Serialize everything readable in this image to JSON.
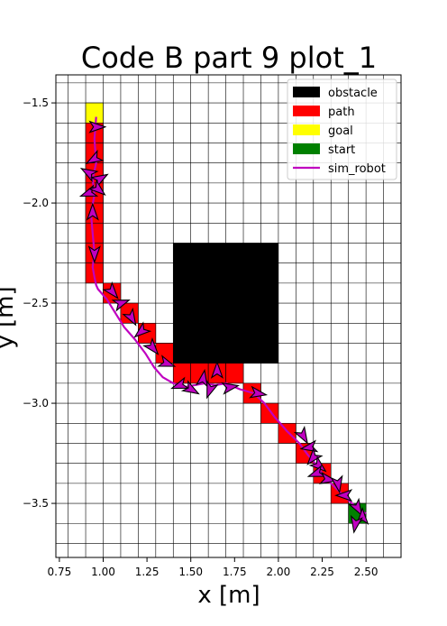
{
  "chart_data": {
    "type": "scatter",
    "title": "Code B part 9 plot_1",
    "xlabel": "x [m]",
    "ylabel": "y [m]",
    "xlim": [
      0.73,
      2.7
    ],
    "ylim": [
      -3.77,
      -1.36
    ],
    "grid": true,
    "grid_step": 0.1,
    "grid_origin_x": 0.8,
    "grid_origin_y": -1.4,
    "xticks": [
      0.75,
      1.0,
      1.25,
      1.5,
      1.75,
      2.0,
      2.25,
      2.5
    ],
    "xtick_labels": [
      "0.75",
      "1.00",
      "1.25",
      "1.50",
      "1.75",
      "2.00",
      "2.25",
      "2.50"
    ],
    "yticks": [
      -1.5,
      -2.0,
      -2.5,
      -3.0,
      -3.5
    ],
    "ytick_labels": [
      "−1.5",
      "−2.0",
      "−2.5",
      "−3.0",
      "−3.5"
    ],
    "legend_position": "top-right",
    "legend": [
      {
        "label": "obstacle",
        "color": "#000000",
        "kind": "patch"
      },
      {
        "label": "path",
        "color": "#ff0000",
        "kind": "patch"
      },
      {
        "label": "goal",
        "color": "#ffff00",
        "kind": "patch"
      },
      {
        "label": "start",
        "color": "#008000",
        "kind": "patch"
      },
      {
        "label": "sim_robot",
        "color": "#c000c0",
        "kind": "line"
      }
    ],
    "obstacle": {
      "x": [
        1.4,
        2.0
      ],
      "y": [
        -2.8,
        -2.2
      ]
    },
    "cell_size": 0.1,
    "goal_cells": [
      [
        0.9,
        -1.6
      ]
    ],
    "start_cells": [
      [
        2.4,
        -3.6
      ]
    ],
    "path_cells": [
      [
        0.9,
        -1.7
      ],
      [
        0.9,
        -1.8
      ],
      [
        0.9,
        -1.9
      ],
      [
        0.9,
        -2.0
      ],
      [
        0.9,
        -2.1
      ],
      [
        0.9,
        -2.2
      ],
      [
        0.9,
        -2.3
      ],
      [
        0.9,
        -2.4
      ],
      [
        1.0,
        -2.5
      ],
      [
        1.1,
        -2.6
      ],
      [
        1.2,
        -2.7
      ],
      [
        1.3,
        -2.8
      ],
      [
        1.4,
        -2.9
      ],
      [
        1.5,
        -2.9
      ],
      [
        1.6,
        -2.9
      ],
      [
        1.7,
        -2.9
      ],
      [
        1.8,
        -3.0
      ],
      [
        1.9,
        -3.1
      ],
      [
        2.0,
        -3.2
      ],
      [
        2.1,
        -3.3
      ],
      [
        2.2,
        -3.4
      ],
      [
        2.3,
        -3.5
      ]
    ],
    "sim_robot": {
      "x": [
        0.96,
        0.95,
        0.96,
        0.94,
        0.95,
        0.93,
        0.94,
        0.95,
        0.94,
        0.95,
        0.96,
        0.97,
        1.02,
        1.07,
        1.12,
        1.18,
        1.24,
        1.29,
        1.34,
        1.4,
        1.46,
        1.52,
        1.58,
        1.64,
        1.7,
        1.78,
        1.86,
        1.92,
        1.98,
        2.05,
        2.12,
        2.17,
        2.21,
        2.25,
        2.3,
        2.36,
        2.42,
        2.47,
        2.5
      ],
      "y": [
        -1.57,
        -1.68,
        -1.8,
        -1.88,
        -1.96,
        -2.05,
        -2.15,
        -2.25,
        -2.32,
        -2.37,
        -2.41,
        -2.43,
        -2.48,
        -2.55,
        -2.62,
        -2.68,
        -2.75,
        -2.82,
        -2.87,
        -2.9,
        -2.92,
        -2.91,
        -2.9,
        -2.91,
        -2.9,
        -2.93,
        -2.95,
        -3.0,
        -3.07,
        -3.14,
        -3.2,
        -3.26,
        -3.3,
        -3.35,
        -3.4,
        -3.45,
        -3.5,
        -3.54,
        -3.55
      ]
    },
    "arrows": [
      {
        "x": 0.96,
        "y": -1.62,
        "a": 0
      },
      {
        "x": 0.95,
        "y": -1.78,
        "a": 210
      },
      {
        "x": 0.92,
        "y": -1.85,
        "a": 150
      },
      {
        "x": 0.98,
        "y": -1.88,
        "a": 30
      },
      {
        "x": 0.92,
        "y": -1.95,
        "a": 200
      },
      {
        "x": 0.97,
        "y": -1.93,
        "a": 320
      },
      {
        "x": 0.94,
        "y": -2.05,
        "a": 90
      },
      {
        "x": 0.95,
        "y": -2.25,
        "a": 270
      },
      {
        "x": 1.05,
        "y": -2.44,
        "a": 310
      },
      {
        "x": 1.1,
        "y": -2.5,
        "a": 20
      },
      {
        "x": 1.16,
        "y": -2.57,
        "a": 300
      },
      {
        "x": 1.22,
        "y": -2.64,
        "a": 220
      },
      {
        "x": 1.28,
        "y": -2.72,
        "a": 310
      },
      {
        "x": 1.36,
        "y": -2.8,
        "a": 340
      },
      {
        "x": 1.44,
        "y": -2.91,
        "a": 200
      },
      {
        "x": 1.5,
        "y": -2.93,
        "a": 330
      },
      {
        "x": 1.57,
        "y": -2.88,
        "a": 80
      },
      {
        "x": 1.61,
        "y": -2.93,
        "a": 250
      },
      {
        "x": 1.65,
        "y": -2.84,
        "a": 90
      },
      {
        "x": 1.72,
        "y": -2.92,
        "a": 10
      },
      {
        "x": 1.88,
        "y": -2.95,
        "a": 350
      },
      {
        "x": 2.14,
        "y": -3.16,
        "a": 300
      },
      {
        "x": 2.18,
        "y": -3.22,
        "a": 190
      },
      {
        "x": 2.2,
        "y": -3.27,
        "a": 230
      },
      {
        "x": 2.23,
        "y": -3.31,
        "a": 320
      },
      {
        "x": 2.22,
        "y": -3.35,
        "a": 200
      },
      {
        "x": 2.28,
        "y": -3.38,
        "a": 350
      },
      {
        "x": 2.34,
        "y": -3.4,
        "a": 280
      },
      {
        "x": 2.38,
        "y": -3.46,
        "a": 180
      },
      {
        "x": 2.45,
        "y": -3.52,
        "a": 300
      },
      {
        "x": 2.48,
        "y": -3.57,
        "a": 90
      },
      {
        "x": 2.44,
        "y": -3.6,
        "a": 260
      }
    ]
  }
}
